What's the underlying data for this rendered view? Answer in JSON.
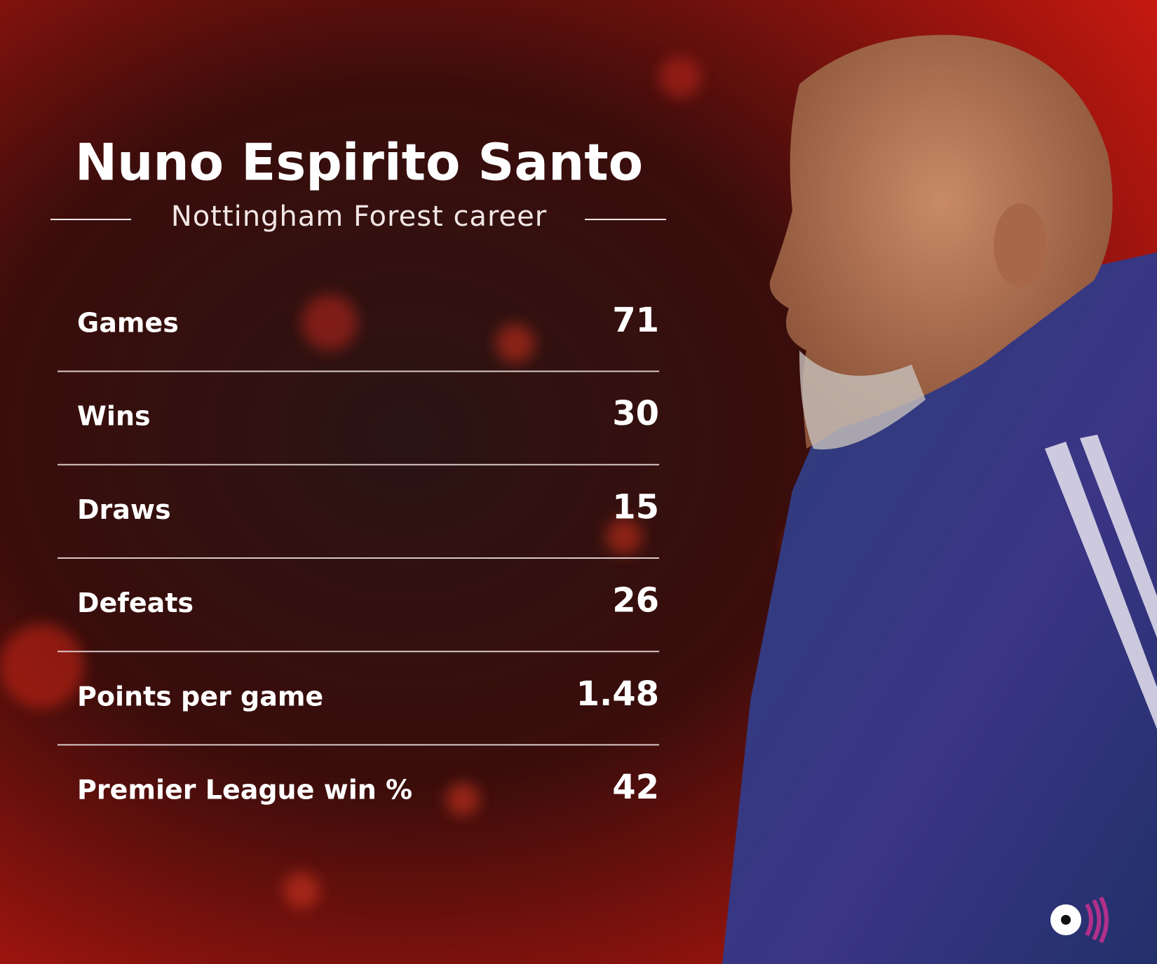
{
  "header": {
    "title": "Nuno Espirito Santo",
    "subtitle": "Nottingham Forest career"
  },
  "stats": [
    {
      "label": "Games",
      "value": 71
    },
    {
      "label": "Wins",
      "value": 30
    },
    {
      "label": "Draws",
      "value": 15
    },
    {
      "label": "Defeats",
      "value": 26
    },
    {
      "label": "Points per game",
      "value": 1.48
    },
    {
      "label": "Premier League win %",
      "value": 42
    }
  ]
}
